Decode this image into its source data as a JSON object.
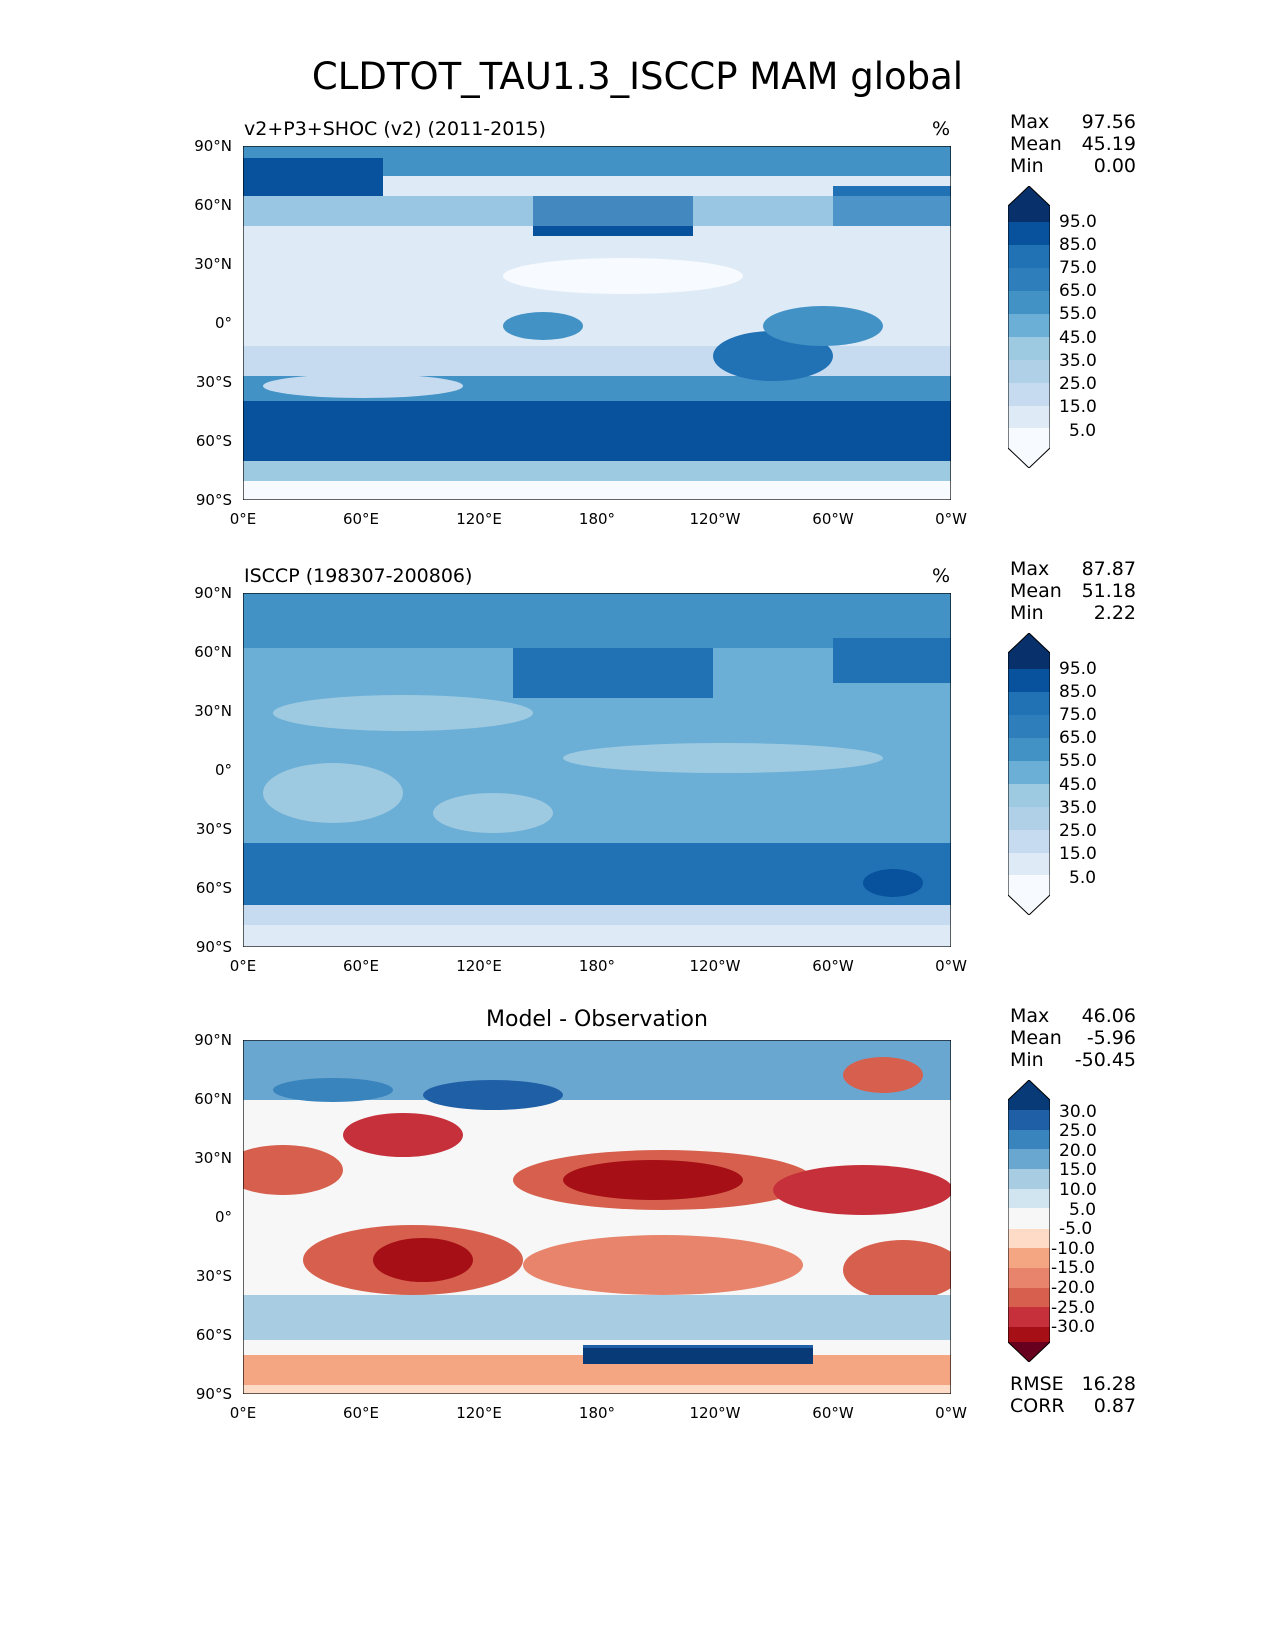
{
  "figure": {
    "title": "CLDTOT_TAU1.3_ISCCP MAM global"
  },
  "axes": {
    "lat_labels": [
      "90°N",
      "60°N",
      "30°N",
      "0°",
      "30°S",
      "60°S",
      "90°S"
    ],
    "lon_labels": [
      "0°E",
      "60°E",
      "120°E",
      "180°",
      "120°W",
      "60°W",
      "0°W"
    ]
  },
  "panels": [
    {
      "id": "model",
      "title": "v2+P3+SHOC (v2) (2011-2015)",
      "unit": "%",
      "stats": [
        {
          "label": "Max",
          "value": "97.56"
        },
        {
          "label": "Mean",
          "value": "45.19"
        },
        {
          "label": "Min",
          "value": "0.00"
        }
      ],
      "colorbar_labels": [
        "95.0",
        "85.0",
        "75.0",
        "65.0",
        "55.0",
        "45.0",
        "35.0",
        "25.0",
        "15.0",
        "5.0"
      ]
    },
    {
      "id": "obs",
      "title": "ISCCP (198307-200806)",
      "unit": "%",
      "stats": [
        {
          "label": "Max",
          "value": "87.87"
        },
        {
          "label": "Mean",
          "value": "51.18"
        },
        {
          "label": "Min",
          "value": "2.22"
        }
      ],
      "colorbar_labels": [
        "95.0",
        "85.0",
        "75.0",
        "65.0",
        "55.0",
        "45.0",
        "35.0",
        "25.0",
        "15.0",
        "5.0"
      ]
    },
    {
      "id": "diff",
      "title": "Model - Observation",
      "stats": [
        {
          "label": "Max",
          "value": "46.06"
        },
        {
          "label": "Mean",
          "value": "-5.96"
        },
        {
          "label": "Min",
          "value": "-50.45"
        }
      ],
      "colorbar_labels": [
        "30.0",
        "25.0",
        "20.0",
        "15.0",
        "10.0",
        "5.0",
        "-5.0",
        "-10.0",
        "-15.0",
        "-20.0",
        "-25.0",
        "-30.0"
      ],
      "metrics": [
        {
          "label": "RMSE",
          "value": "16.28"
        },
        {
          "label": "CORR",
          "value": "0.87"
        }
      ]
    }
  ],
  "colors": {
    "blues": [
      "#f7fbff",
      "#deebf7",
      "#c6dbef",
      "#b0d0e8",
      "#9ecae1",
      "#6baed6",
      "#4292c6",
      "#2f7ebc",
      "#2171b5",
      "#08519c",
      "#08306b"
    ],
    "diverging": [
      "#67001f",
      "#a50f15",
      "#c6303a",
      "#d6604d",
      "#e7846b",
      "#f4a582",
      "#fddbc7",
      "#f7f7f7",
      "#d1e5f0",
      "#a8cde3",
      "#6aa7d0",
      "#3a84bd",
      "#1f5fa6",
      "#083a78"
    ]
  }
}
